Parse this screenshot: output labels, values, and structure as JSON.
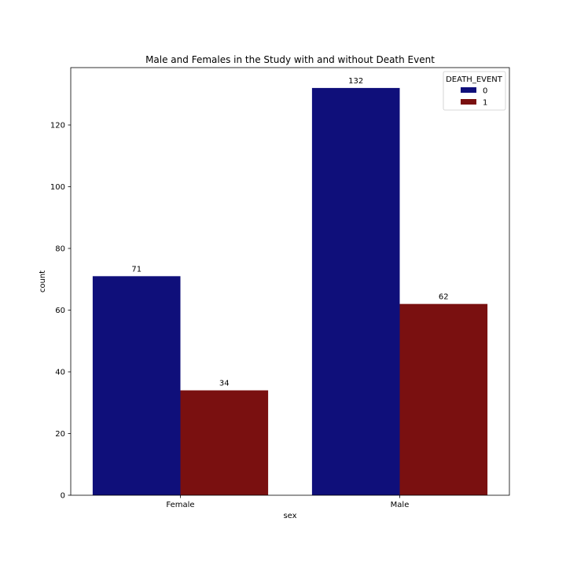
{
  "chart_data": {
    "type": "bar",
    "title": "Male and Females in the Study with and without Death Event",
    "xlabel": "sex",
    "ylabel": "count",
    "categories": [
      "Female",
      "Male"
    ],
    "series": [
      {
        "name": "0",
        "values": [
          71,
          132
        ],
        "color": "#0f0f7a"
      },
      {
        "name": "1",
        "values": [
          34,
          62
        ],
        "color": "#7a1010"
      }
    ],
    "ylim": [
      0,
      138.6
    ],
    "yticks": [
      0,
      20,
      40,
      60,
      80,
      100,
      120
    ],
    "grid": false,
    "legend": {
      "title": "DEATH_EVENT",
      "placement": "top-right"
    },
    "data_labels": true
  }
}
